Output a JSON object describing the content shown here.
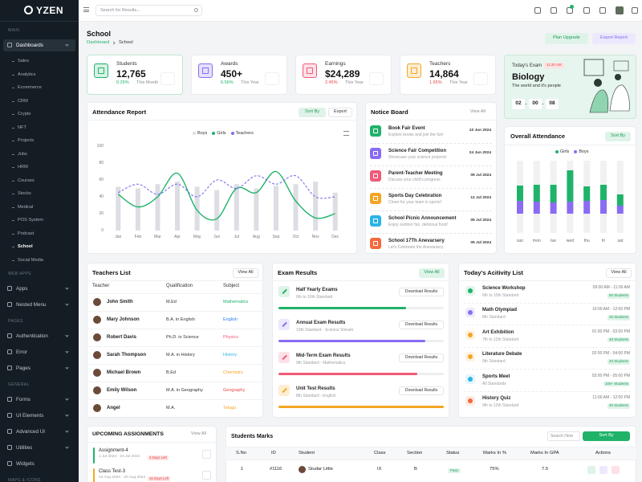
{
  "sidebar": {
    "logo": "YZEN",
    "dashboard_items": [
      "Sales",
      "Analytics",
      "Ecommerce",
      "CRM",
      "Crypto",
      "NFT",
      "Projects",
      "Jobs",
      "HRM",
      "Courses",
      "Stocks",
      "Medical",
      "POS System",
      "Podcast",
      "School",
      "Social Media"
    ],
    "sections": [
      {
        "title": "MAIN",
        "items": [
          "Dashboards"
        ]
      },
      {
        "title": "WEB APPS",
        "items": [
          "Apps",
          "Nested Menu"
        ]
      },
      {
        "title": "PAGES",
        "items": [
          "Authentication",
          "Error",
          "Pages"
        ]
      },
      {
        "title": "GENERAL",
        "items": [
          "Forms",
          "UI Elements",
          "Advanced UI",
          "Utilities",
          "Widgets"
        ]
      },
      {
        "title": "MAPS & ICONS"
      }
    ]
  },
  "header": {
    "search_placeholder": "Search for Results..."
  },
  "page": {
    "title": "School",
    "breadcrumb": [
      "Dashboard",
      "School"
    ],
    "buttons": [
      "Plan Upgrade",
      "Export Report"
    ]
  },
  "stats": [
    {
      "label": "Students",
      "value": "12,765",
      "change": "0.25%",
      "period": "This Month"
    },
    {
      "label": "Awards",
      "value": "450+",
      "change": "6.56%",
      "period": "This Year"
    },
    {
      "label": "Earnings",
      "value": "$24,289",
      "change": "2.45%",
      "period": "This Year"
    },
    {
      "label": "Teachers",
      "value": "14,864",
      "change": "1.65%",
      "period": "This Year"
    }
  ],
  "exam_card": {
    "title": "Today's Exam",
    "time": "11:30 AM",
    "subject": "Biology",
    "topic": "The world and it's people",
    "countdown": [
      "02",
      "00",
      "08"
    ]
  },
  "attendance_report": {
    "type": "bar",
    "title": "Attendance Report",
    "buttons": [
      "Sort By",
      "Export"
    ],
    "categories": [
      "Jan",
      "Feb",
      "Mar",
      "Apr",
      "May",
      "Jun",
      "Jul",
      "Aug",
      "Sep",
      "Oct",
      "Nov",
      "Dec"
    ],
    "series": [
      {
        "name": "Boys",
        "type": "bar",
        "color": "#dcdee3",
        "values": [
          52,
          50,
          55,
          58,
          52,
          48,
          55,
          50,
          53,
          55,
          58,
          45
        ]
      },
      {
        "name": "Girls",
        "type": "line",
        "color": "#1fb36a",
        "values": [
          43,
          28,
          40,
          68,
          24,
          14,
          50,
          45,
          70,
          35,
          15,
          20
        ]
      },
      {
        "name": "Teachers",
        "type": "line",
        "dashed": true,
        "color": "#7c6ff0",
        "values": [
          45,
          55,
          43,
          55,
          40,
          60,
          50,
          65,
          55,
          65,
          40,
          40
        ]
      }
    ],
    "ylim": [
      0,
      100
    ],
    "yticks": [
      0,
      20,
      40,
      60,
      80,
      100
    ]
  },
  "notice_board": {
    "title": "Notice Board",
    "view_all": "View All",
    "items": [
      {
        "title": "Book Fair Event",
        "text": "Explore books and join the fun!",
        "date": "10 Jun 2024"
      },
      {
        "title": "Science Fair Competition",
        "text": "Showcase your science projects!",
        "date": "24 Jun 2024"
      },
      {
        "title": "Parent-Teacher Meeting",
        "text": "Discuss your child's progress",
        "date": "09 Jul 2024"
      },
      {
        "title": "Sports Day Celebration",
        "text": "Cheer for your team in sports!",
        "date": "12 Jul 2024"
      },
      {
        "title": "School Picnic Announcement",
        "text": "Enjoy outdoor fun, delicious food!",
        "date": "05 Jul 2024"
      },
      {
        "title": "School 17Th Anevarsery",
        "text": "Let's Celebrate the Anevarsery",
        "date": "05 Jul 2024"
      }
    ]
  },
  "overall_attendance": {
    "type": "bar",
    "stacked": true,
    "title": "Overall Attendance",
    "button": "Sort By",
    "categories": [
      "sun",
      "mon",
      "tue",
      "wed",
      "thu",
      "fri",
      "sat"
    ],
    "series": [
      {
        "name": "Girls",
        "color": "#1fb36a",
        "values": [
          19,
          21,
          22,
          39,
          18,
          19,
          14
        ]
      },
      {
        "name": "Boys",
        "color": "#8a6cf3",
        "values": [
          16,
          15,
          14,
          15,
          16,
          17,
          10
        ]
      }
    ]
  },
  "teachers_list": {
    "title": "Teachers List",
    "view_all": "View All",
    "columns": [
      "Teacher",
      "Qualification",
      "Subject"
    ],
    "rows": [
      [
        "John Smith",
        "M.Ed",
        "Mathematics"
      ],
      [
        "Mary Johnson",
        "B.A. in English",
        "English"
      ],
      [
        "Robert Davis",
        "Ph.D. in Science",
        "Physics"
      ],
      [
        "Sarah Thompson",
        "M.A. in History",
        "History"
      ],
      [
        "Michael Brown",
        "B.Ed",
        "Chemistry"
      ],
      [
        "Emily Wilson",
        "M.A. in Geography",
        "Geography"
      ],
      [
        "Angel",
        "M.A.",
        "Telugu"
      ]
    ]
  },
  "exam_results": {
    "title": "Exam Results",
    "view_all": "View All",
    "button": "Download Results",
    "items": [
      {
        "title": "Half Yearly Exams",
        "text": "6th to 10th Standard",
        "progress": 77
      },
      {
        "title": "Annual Exam Results",
        "text": "10th Standard - Science Stream",
        "progress": 89
      },
      {
        "title": "Mid-Term Exam Results",
        "text": "9th Standard - Mathematics",
        "progress": 84
      },
      {
        "title": "Unit Test Results",
        "text": "8th Standard - English",
        "progress": 100
      }
    ]
  },
  "activity_list": {
    "title": "Today's Acitivity List",
    "view_all": "View All",
    "items": [
      {
        "title": "Science Workshop",
        "text": "6th to 10th Standard",
        "time": "09:00 AM - 11:00 AM",
        "students": "50 Students"
      },
      {
        "title": "Math Olympiad",
        "text": "8th Standard",
        "time": "10:00 AM - 12:00 PM",
        "students": "25 Students"
      },
      {
        "title": "Art Exhibition",
        "text": "7th to 12th Standard",
        "time": "01:00 PM - 03:00 PM",
        "students": "40 Students"
      },
      {
        "title": "Literature Debate",
        "text": "9th Standard",
        "time": "02:00 PM - 04:00 PM",
        "students": "20 Students"
      },
      {
        "title": "Sports Meet",
        "text": "All Standards",
        "time": "03:00 PM - 05:00 PM",
        "students": "100+ Students"
      },
      {
        "title": "History Quiz",
        "text": "9th to 12th Standard",
        "time": "11:00 AM - 12:00 PM",
        "students": "30 Students"
      }
    ]
  },
  "assignments": {
    "title": "UPCOMING ASSIGNMENTS",
    "view_all": "View All",
    "items": [
      {
        "title": "Assignment-4",
        "dates": "1 Jul 2024 - 24 Jul 2024",
        "badge": "3 Days Left"
      },
      {
        "title": "Class Test-3",
        "dates": "14 Aug 2024 - 20 Aug 2024",
        "badge": "16 Days Left"
      }
    ]
  },
  "students_marks": {
    "title": "Students Marks",
    "search_placeholder": "Search Here",
    "button": "Sort By",
    "columns": [
      "S.No",
      "ID",
      "Student",
      "Class",
      "Section",
      "Status",
      "Marks In %",
      "Marks In GPA",
      "Actions"
    ],
    "rows": [
      [
        "1",
        "#1116",
        "Studar Little",
        "IX",
        "B",
        "Pass",
        "75%",
        "7.5"
      ]
    ]
  }
}
